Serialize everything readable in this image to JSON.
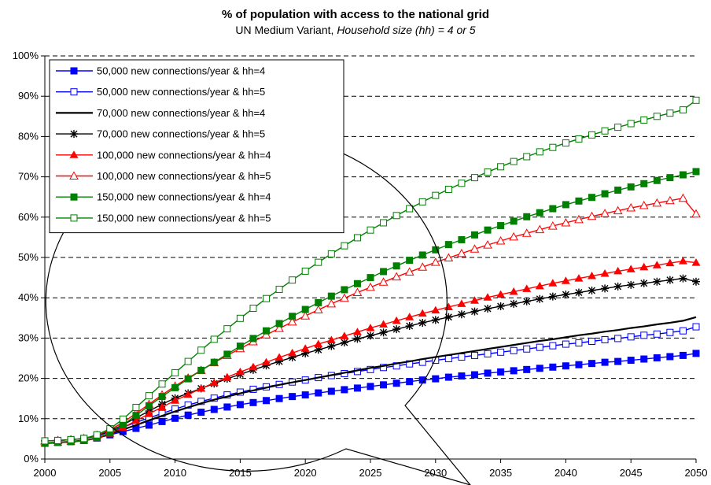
{
  "chart_data": {
    "type": "line",
    "title": "% of population with access to the national grid",
    "subtitle_plain": "UN Medium Variant, ",
    "subtitle_italic": "Household size (hh) = 4 or 5",
    "xlabel": "",
    "ylabel": "",
    "xlim": [
      2000,
      2050
    ],
    "ylim": [
      0,
      100
    ],
    "x_ticks": [
      "2000",
      "2005",
      "2010",
      "2015",
      "2020",
      "2025",
      "2030",
      "2035",
      "2040",
      "2045",
      "2050"
    ],
    "y_ticks": [
      "0%",
      "10%",
      "20%",
      "30%",
      "40%",
      "50%",
      "60%",
      "70%",
      "80%",
      "90%",
      "100%"
    ],
    "grid": "horizontal dashed",
    "legend_position": "top-left",
    "annotation": "callout ellipse around 2000-2028",
    "x": [
      2000,
      2001,
      2002,
      2003,
      2004,
      2005,
      2006,
      2007,
      2008,
      2009,
      2010,
      2011,
      2012,
      2013,
      2014,
      2015,
      2016,
      2017,
      2018,
      2019,
      2020,
      2021,
      2022,
      2023,
      2024,
      2025,
      2026,
      2027,
      2028,
      2029,
      2030,
      2031,
      2032,
      2033,
      2034,
      2035,
      2036,
      2037,
      2038,
      2039,
      2040,
      2041,
      2042,
      2043,
      2044,
      2045,
      2046,
      2047,
      2048,
      2049,
      2050
    ],
    "series": [
      {
        "name": "50,000 new connections/year & hh=4",
        "color": "#0000ff",
        "marker": "square-filled",
        "values": [
          3.9,
          4.1,
          4.3,
          4.6,
          5.2,
          6.0,
          6.8,
          7.6,
          8.4,
          9.3,
          10.1,
          10.9,
          11.6,
          12.3,
          12.9,
          13.5,
          14.0,
          14.5,
          15.0,
          15.5,
          15.9,
          16.4,
          16.8,
          17.2,
          17.6,
          18.0,
          18.4,
          18.8,
          19.2,
          19.6,
          19.9,
          20.3,
          20.6,
          20.9,
          21.3,
          21.6,
          21.9,
          22.2,
          22.5,
          22.8,
          23.1,
          23.4,
          23.7,
          24.0,
          24.2,
          24.5,
          24.8,
          25.1,
          25.4,
          25.7,
          26.2
        ]
      },
      {
        "name": "50,000 new connections/year & hh=5",
        "color": "#0000ff",
        "marker": "square-open",
        "values": [
          4.5,
          4.6,
          4.8,
          5.1,
          5.7,
          6.8,
          7.9,
          9.1,
          10.2,
          11.3,
          12.4,
          13.4,
          14.3,
          15.1,
          15.9,
          16.6,
          17.3,
          17.9,
          18.5,
          19.1,
          19.6,
          20.2,
          20.7,
          21.2,
          21.7,
          22.2,
          22.7,
          23.1,
          23.6,
          24.0,
          24.5,
          24.9,
          25.3,
          25.7,
          26.1,
          26.5,
          26.9,
          27.3,
          27.7,
          28.1,
          28.5,
          28.8,
          29.2,
          29.6,
          29.9,
          30.3,
          30.7,
          31.0,
          31.4,
          31.8,
          32.8
        ]
      },
      {
        "name": "70,000 new connections/year & hh=4",
        "color": "#000000",
        "marker": "none",
        "values": [
          3.9,
          4.1,
          4.3,
          4.6,
          5.2,
          6.2,
          7.3,
          8.4,
          9.6,
          10.7,
          11.8,
          12.8,
          13.8,
          14.7,
          15.5,
          16.3,
          17.0,
          17.7,
          18.4,
          19.0,
          19.6,
          20.2,
          20.8,
          21.4,
          22.0,
          22.6,
          23.1,
          23.7,
          24.2,
          24.8,
          25.3,
          25.8,
          26.3,
          26.8,
          27.3,
          27.8,
          28.3,
          28.8,
          29.3,
          29.7,
          30.2,
          30.7,
          31.1,
          31.6,
          32.0,
          32.5,
          32.9,
          33.4,
          33.8,
          34.3,
          35.2
        ]
      },
      {
        "name": "70,000 new connections/year & hh=5",
        "color": "#000000",
        "marker": "asterisk",
        "values": [
          4.5,
          4.6,
          4.8,
          5.1,
          5.8,
          7.0,
          8.5,
          10.2,
          11.9,
          13.6,
          15.1,
          16.3,
          17.5,
          18.7,
          19.9,
          21.0,
          22.1,
          23.2,
          24.2,
          25.2,
          26.2,
          27.1,
          28.0,
          28.9,
          29.8,
          30.6,
          31.4,
          32.2,
          33.0,
          33.8,
          34.5,
          35.2,
          35.9,
          36.6,
          37.3,
          37.9,
          38.5,
          39.1,
          39.7,
          40.3,
          40.8,
          41.3,
          41.8,
          42.3,
          42.8,
          43.2,
          43.6,
          44.0,
          44.4,
          44.8,
          44.0
        ]
      },
      {
        "name": "100,000 new connections/year & hh=4",
        "color": "#ff0000",
        "marker": "triangle-filled",
        "values": [
          3.9,
          4.1,
          4.3,
          4.6,
          5.2,
          6.3,
          7.8,
          9.5,
          11.2,
          12.9,
          14.5,
          16.0,
          17.5,
          18.9,
          20.3,
          21.6,
          22.8,
          24.0,
          25.2,
          26.3,
          27.4,
          28.5,
          29.5,
          30.5,
          31.5,
          32.5,
          33.4,
          34.3,
          35.2,
          36.1,
          36.9,
          37.7,
          38.5,
          39.3,
          40.1,
          40.8,
          41.5,
          42.2,
          42.9,
          43.6,
          44.2,
          44.8,
          45.4,
          46.0,
          46.6,
          47.1,
          47.6,
          48.1,
          48.6,
          49.1,
          48.7
        ]
      },
      {
        "name": "100,000 new connections/year & hh=5",
        "color": "#ff0000",
        "marker": "triangle-open",
        "values": [
          4.5,
          4.6,
          4.8,
          5.1,
          5.9,
          7.2,
          9.1,
          11.3,
          13.6,
          15.9,
          18.1,
          20.1,
          22.0,
          23.9,
          25.7,
          27.4,
          29.1,
          30.8,
          32.4,
          34.0,
          35.5,
          37.0,
          38.5,
          39.9,
          41.3,
          42.6,
          43.9,
          45.2,
          46.4,
          47.6,
          48.8,
          49.9,
          51.0,
          52.1,
          53.1,
          54.1,
          55.1,
          56.0,
          56.9,
          57.8,
          58.6,
          59.4,
          60.2,
          60.9,
          61.6,
          62.3,
          62.9,
          63.5,
          64.1,
          64.7,
          60.8
        ]
      },
      {
        "name": "150,000 new connections/year & hh=4",
        "color": "#008000",
        "marker": "square-filled",
        "values": [
          3.9,
          4.1,
          4.3,
          4.6,
          5.3,
          6.5,
          8.5,
          10.8,
          13.2,
          15.5,
          17.7,
          19.9,
          22.0,
          24.0,
          26.0,
          28.0,
          29.9,
          31.8,
          33.6,
          35.4,
          37.1,
          38.8,
          40.4,
          42.0,
          43.5,
          45.0,
          46.5,
          47.9,
          49.3,
          50.6,
          51.9,
          53.2,
          54.4,
          55.6,
          56.8,
          57.9,
          59.0,
          60.1,
          61.1,
          62.1,
          63.1,
          64.0,
          64.9,
          65.8,
          66.7,
          67.5,
          68.3,
          69.1,
          69.8,
          70.5,
          71.3
        ]
      },
      {
        "name": "150,000 new connections/year & hh=5",
        "color": "#008000",
        "marker": "square-open",
        "values": [
          4.5,
          4.6,
          4.8,
          5.1,
          6.0,
          7.5,
          9.9,
          12.8,
          15.7,
          18.6,
          21.4,
          24.2,
          27.0,
          29.7,
          32.3,
          34.9,
          37.4,
          39.8,
          42.1,
          44.4,
          46.6,
          48.8,
          50.9,
          52.9,
          54.9,
          56.8,
          58.6,
          60.4,
          62.1,
          63.8,
          65.4,
          66.9,
          68.4,
          69.8,
          71.2,
          72.5,
          73.8,
          75.0,
          76.2,
          77.3,
          78.4,
          79.4,
          80.4,
          81.4,
          82.3,
          83.2,
          84.1,
          85.0,
          85.8,
          86.6,
          89.0
        ]
      }
    ]
  }
}
